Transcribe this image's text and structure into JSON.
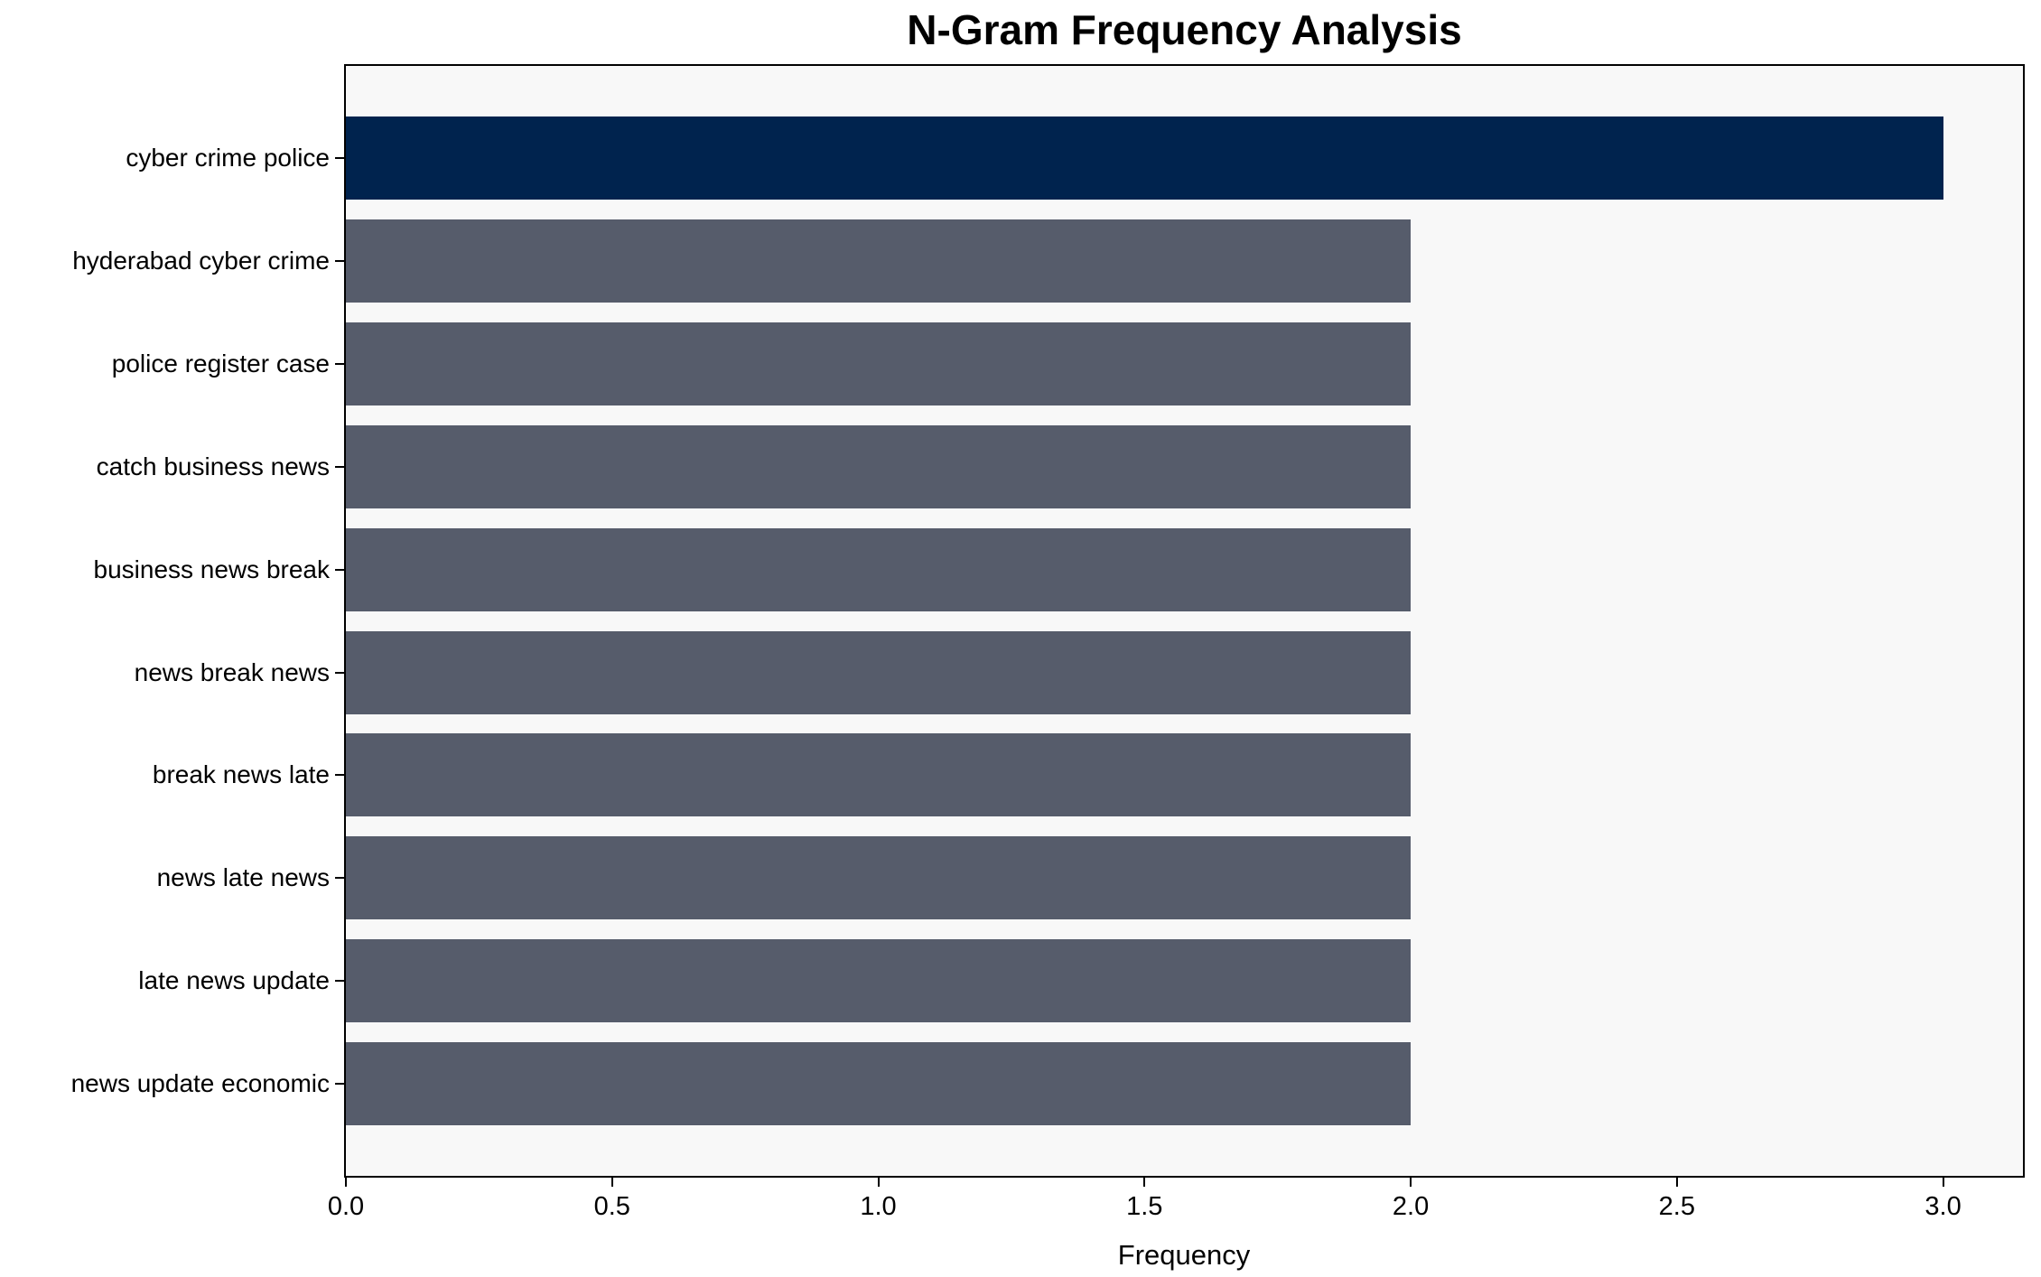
{
  "chart_data": {
    "type": "bar",
    "orientation": "horizontal",
    "title": "N-Gram Frequency Analysis",
    "xlabel": "Frequency",
    "ylabel": "",
    "categories": [
      "cyber crime police",
      "hyderabad cyber crime",
      "police register case",
      "catch business news",
      "business news break",
      "news break news",
      "break news late",
      "news late news",
      "late news update",
      "news update economic"
    ],
    "values": [
      3,
      2,
      2,
      2,
      2,
      2,
      2,
      2,
      2,
      2
    ],
    "bar_colors": [
      "#00234e",
      "#565c6b",
      "#565c6b",
      "#565c6b",
      "#565c6b",
      "#565c6b",
      "#565c6b",
      "#565c6b",
      "#565c6b",
      "#565c6b"
    ],
    "x_tick_values": [
      0.0,
      0.5,
      1.0,
      1.5,
      2.0,
      2.5,
      3.0
    ],
    "x_tick_labels": [
      "0.0",
      "0.5",
      "1.0",
      "1.5",
      "2.0",
      "2.5",
      "3.0"
    ],
    "xlim": [
      0,
      3.15
    ],
    "grid": false,
    "legend": null,
    "colors": {
      "highlight_bar": "#00234e",
      "default_bar": "#565c6b",
      "plot_background": "#f8f8f8",
      "figure_background": "#ffffff",
      "axis_frame": "#000000",
      "text": "#000000"
    }
  }
}
